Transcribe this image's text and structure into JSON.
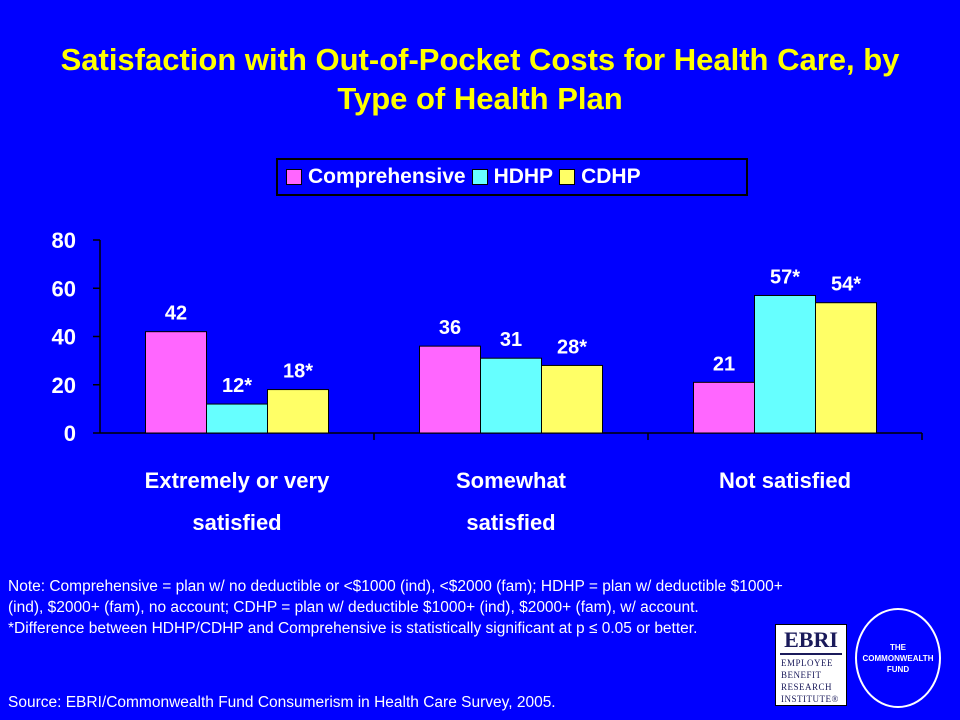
{
  "title": "Satisfaction with Out-of-Pocket Costs for Health Care, by Type of Health Plan",
  "colors": {
    "background": "#0000FF",
    "title": "#FFFF00",
    "text": "#FFFFFF",
    "comprehensive": "#FF66FF",
    "hdhp": "#66FFFF",
    "cdhp": "#FFFF66"
  },
  "legend": [
    "Comprehensive",
    "HDHP",
    "CDHP"
  ],
  "chart_data": {
    "type": "bar",
    "title": "Satisfaction with Out-of-Pocket Costs for Health Care, by Type of Health Plan",
    "categories": [
      [
        "Extremely or very",
        "satisfied"
      ],
      [
        "Somewhat",
        "satisfied"
      ],
      [
        "Not satisfied"
      ]
    ],
    "series": [
      {
        "name": "Comprehensive",
        "values": [
          42,
          36,
          21
        ],
        "labels": [
          "42",
          "36",
          "21"
        ]
      },
      {
        "name": "HDHP",
        "values": [
          12,
          31,
          57
        ],
        "labels": [
          "12*",
          "31",
          "57*"
        ]
      },
      {
        "name": "CDHP",
        "values": [
          18,
          28,
          54
        ],
        "labels": [
          "18*",
          "28*",
          "54*"
        ]
      }
    ],
    "ylim": [
      0,
      80
    ],
    "yticks": [
      0,
      20,
      40,
      60,
      80
    ],
    "xlabel": "",
    "ylabel": "",
    "grid": false,
    "legend_position": "top"
  },
  "note": {
    "lines": [
      "Note: Comprehensive = plan w/ no deductible or <$1000 (ind), <$2000 (fam); HDHP = plan w/ deductible $1000+ (ind), $2000+ (fam), no account; CDHP = plan w/ deductible $1000+ (ind), $2000+ (fam), w/ account.",
      "*Difference between HDHP/CDHP and Comprehensive is statistically significant at p ≤ 0.05 or better."
    ]
  },
  "source": "Source: EBRI/Commonwealth Fund Consumerism in Health Care Survey, 2005.",
  "logos": {
    "ebri_abbr": "EBRI",
    "ebri_lines": [
      "EMPLOYEE",
      "BENEFIT",
      "RESEARCH",
      "INSTITUTE®"
    ],
    "cwf_lines": [
      "THE",
      "COMMONWEALTH",
      "FUND"
    ]
  }
}
